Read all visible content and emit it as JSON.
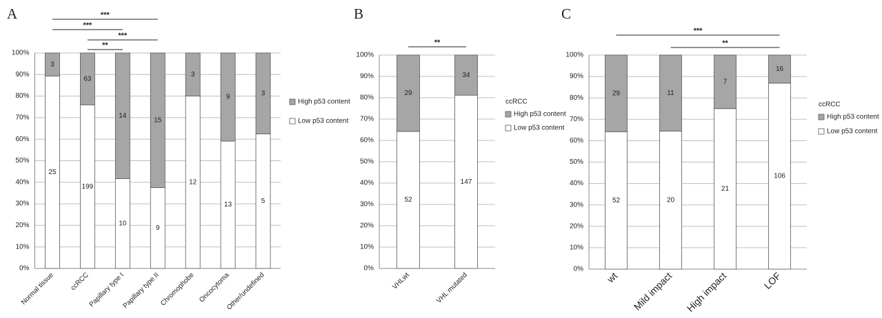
{
  "chart_data": [
    {
      "panel": "A",
      "type": "bar",
      "stacked": "percent",
      "categories": [
        "Normal tissue",
        "ccRCC",
        "Papillary type I",
        "Papillary type II",
        "Chromophobe",
        "Oncocytoma",
        "Other/undefined"
      ],
      "series": [
        {
          "name": "High p53 content",
          "color": "#a6a6a6",
          "values": [
            3,
            63,
            14,
            15,
            3,
            9,
            3
          ]
        },
        {
          "name": "Low p53 content",
          "color": "#ffffff",
          "values": [
            25,
            199,
            10,
            9,
            12,
            13,
            5
          ]
        }
      ],
      "ylim": [
        0,
        100
      ],
      "yticks": [
        {
          "value": 0,
          "label": "0%"
        },
        {
          "value": 10,
          "label": "10%"
        },
        {
          "value": 20,
          "label": "20%"
        },
        {
          "value": 30,
          "label": "30%"
        },
        {
          "value": 40,
          "label": "40%"
        },
        {
          "value": 50,
          "label": "50%"
        },
        {
          "value": 60,
          "label": "60%"
        },
        {
          "value": 70,
          "label": "70%"
        },
        {
          "value": 80,
          "label": "80%"
        },
        {
          "value": 90,
          "label": "90%"
        },
        {
          "value": 100,
          "label": "100%"
        }
      ],
      "grid": true,
      "legend": "right",
      "annotations": [
        {
          "text": "***",
          "between": [
            "Normal tissue",
            "Papillary type II"
          ]
        },
        {
          "text": "***",
          "between": [
            "Normal tissue",
            "Papillary type I"
          ]
        },
        {
          "text": "***",
          "between": [
            "ccRCC",
            "Papillary type II"
          ]
        },
        {
          "text": "**",
          "between": [
            "ccRCC",
            "Papillary type I"
          ]
        }
      ]
    },
    {
      "panel": "B",
      "type": "bar",
      "stacked": "percent",
      "categories": [
        "VHLwt",
        "VHL mutated"
      ],
      "series": [
        {
          "name": "High p53 content",
          "color": "#a6a6a6",
          "values": [
            29,
            34
          ]
        },
        {
          "name": "Low p53 content",
          "color": "#ffffff",
          "values": [
            52,
            147
          ]
        }
      ],
      "ylim": [
        0,
        100
      ],
      "yticks": [
        {
          "value": 0,
          "label": "0%"
        },
        {
          "value": 10,
          "label": "10%"
        },
        {
          "value": 20,
          "label": "20%"
        },
        {
          "value": 30,
          "label": "30%"
        },
        {
          "value": 40,
          "label": "40%"
        },
        {
          "value": 50,
          "label": "50%"
        },
        {
          "value": 60,
          "label": "60%"
        },
        {
          "value": 70,
          "label": "70%"
        },
        {
          "value": 80,
          "label": "80%"
        },
        {
          "value": 90,
          "label": "90%"
        },
        {
          "value": 100,
          "label": "100%"
        }
      ],
      "grid": true,
      "legend": "right",
      "legend_title": "ccRCC",
      "annotations": [
        {
          "text": "**",
          "between": [
            "VHLwt",
            "VHL mutated"
          ]
        }
      ]
    },
    {
      "panel": "C",
      "type": "bar",
      "stacked": "percent",
      "categories": [
        "wt",
        "Mild impact",
        "High impact",
        "LOF"
      ],
      "series": [
        {
          "name": "High p53 content",
          "color": "#a6a6a6",
          "values": [
            29,
            11,
            7,
            16
          ]
        },
        {
          "name": "Low p53 content",
          "color": "#ffffff",
          "values": [
            52,
            20,
            21,
            106
          ]
        }
      ],
      "ylim": [
        0,
        100
      ],
      "yticks": [
        {
          "value": 0,
          "label": "0%"
        },
        {
          "value": 10,
          "label": "10%"
        },
        {
          "value": 20,
          "label": "20%"
        },
        {
          "value": 30,
          "label": "30%"
        },
        {
          "value": 40,
          "label": "40%"
        },
        {
          "value": 50,
          "label": "50%"
        },
        {
          "value": 60,
          "label": "60%"
        },
        {
          "value": 70,
          "label": "70%"
        },
        {
          "value": 80,
          "label": "80%"
        },
        {
          "value": 90,
          "label": "90%"
        },
        {
          "value": 100,
          "label": "100%"
        }
      ],
      "grid": true,
      "legend": "right",
      "legend_title": "ccRCC",
      "annotations": [
        {
          "text": "***",
          "between": [
            "wt",
            "LOF"
          ]
        },
        {
          "text": "**",
          "between": [
            "Mild impact",
            "LOF"
          ]
        }
      ]
    }
  ]
}
